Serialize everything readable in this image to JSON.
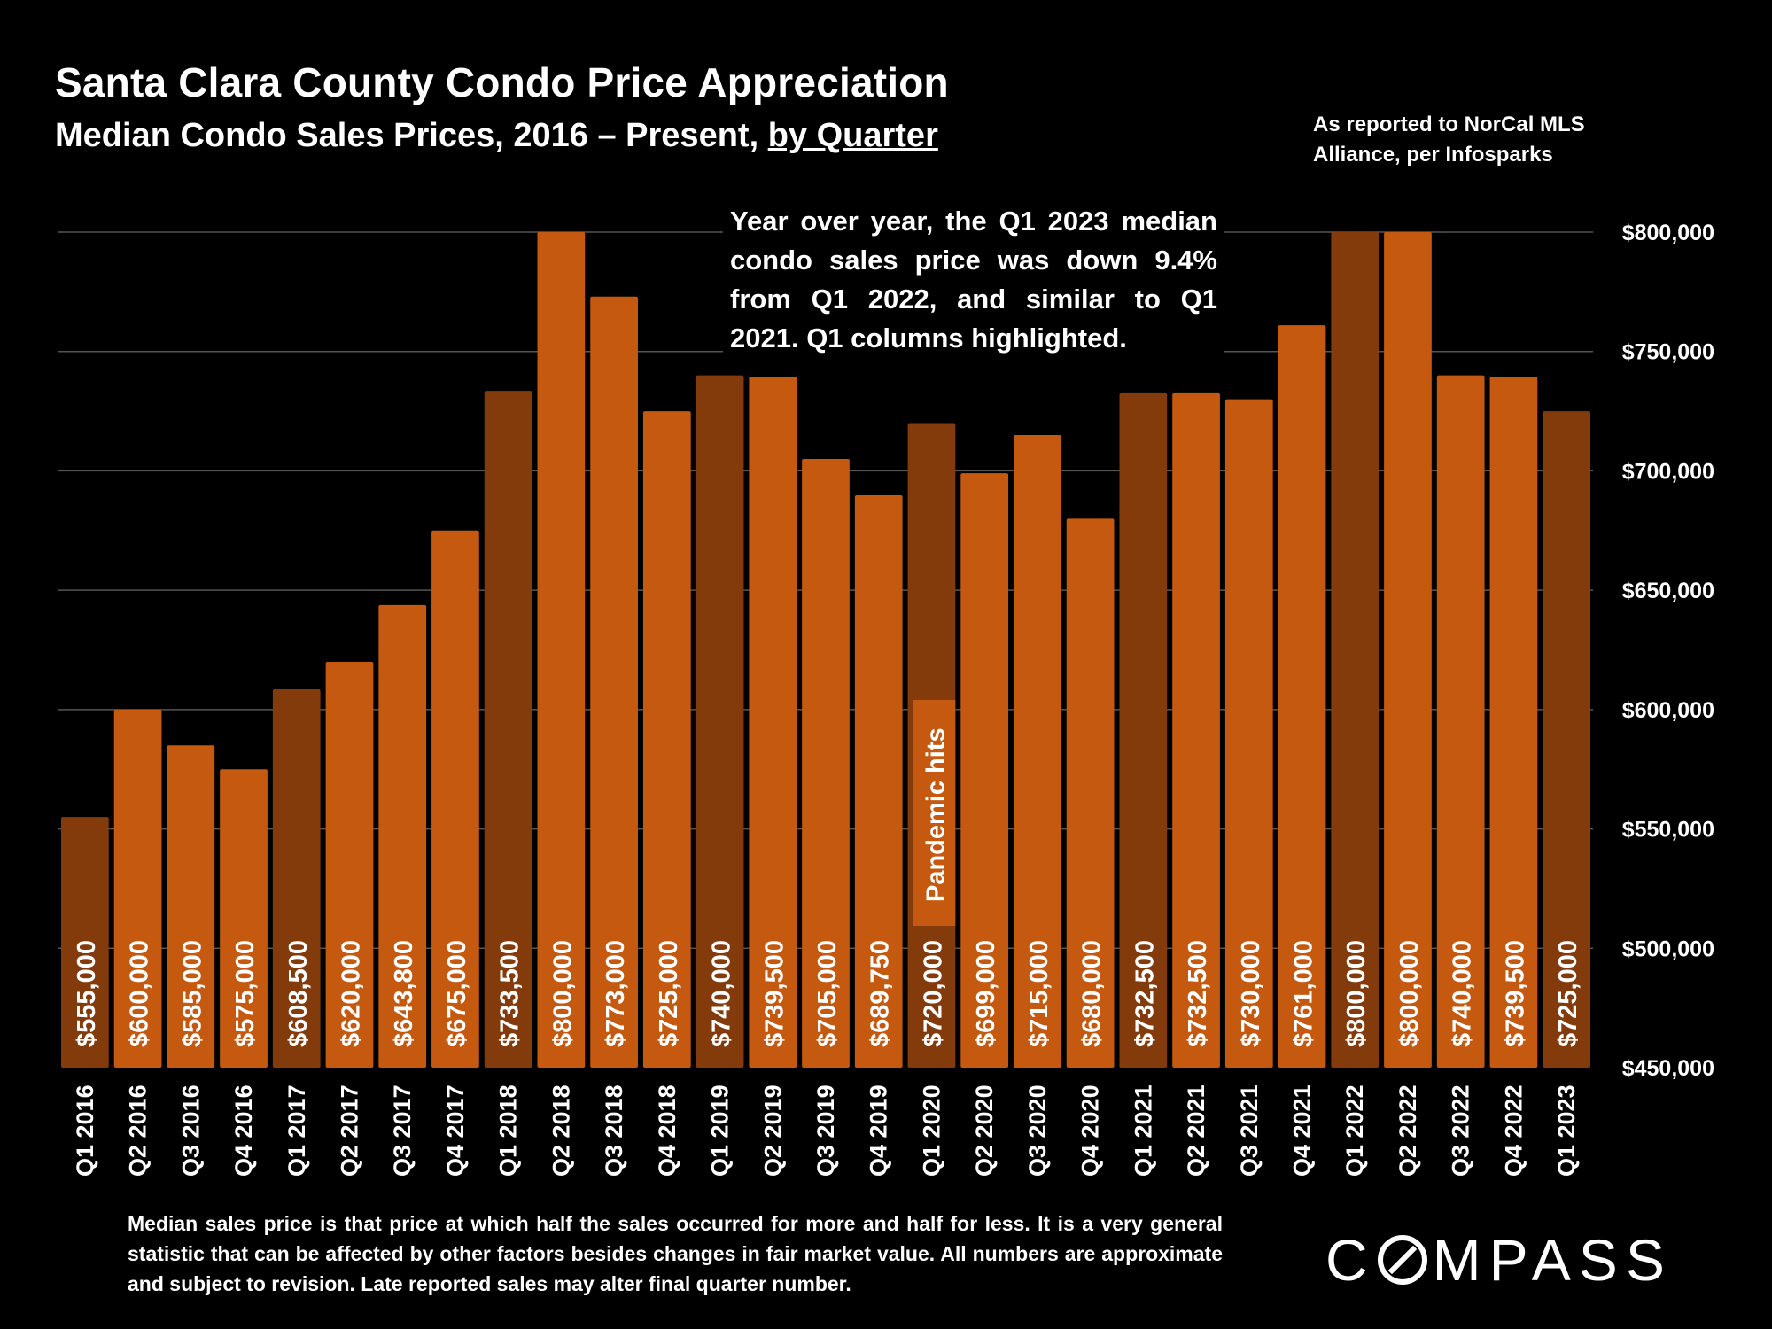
{
  "header": {
    "title": "Santa Clara County Condo Price Appreciation",
    "subtitle_main": "Median Condo Sales Prices, 2016 – Present, ",
    "subtitle_underlined": "by Quarter",
    "source_line1": "As reported to NorCal MLS",
    "source_line2": "Alliance, per Infosparks"
  },
  "annotation": "Year over year, the Q1 2023 median condo sales price was down 9.4% from Q1 2022, and similar to Q1 2021. Q1 columns highlighted.",
  "callout": "Pandemic hits",
  "footnote": "Median sales price is that price at which half the sales occurred for more and half for less. It is a very general statistic that can be affected by other factors besides changes in fair market value. All numbers are approximate and subject to revision. Late reported sales may alter final quarter number.",
  "logo": {
    "before": "C",
    "after": "MPASS"
  },
  "colors": {
    "bar": "#C4590F",
    "bar_q1": "#843B0C",
    "grid": "#555555",
    "background": "#000000",
    "text": "#FFFFFF"
  },
  "chart_data": {
    "type": "bar",
    "title": "Santa Clara County Condo Price Appreciation",
    "subtitle": "Median Condo Sales Prices, 2016 – Present, by Quarter",
    "categories": [
      "Q1 2016",
      "Q2 2016",
      "Q3 2016",
      "Q4 2016",
      "Q1 2017",
      "Q2 2017",
      "Q3 2017",
      "Q4 2017",
      "Q1 2018",
      "Q2 2018",
      "Q3 2018",
      "Q4 2018",
      "Q1 2019",
      "Q2 2019",
      "Q3 2019",
      "Q4 2019",
      "Q1 2020",
      "Q2 2020",
      "Q3 2020",
      "Q4 2020",
      "Q1 2021",
      "Q2 2021",
      "Q3 2021",
      "Q4 2021",
      "Q1 2022",
      "Q2 2022",
      "Q3 2022",
      "Q4 2022",
      "Q1 2023"
    ],
    "values": [
      555000,
      600000,
      585000,
      575000,
      608500,
      620000,
      643800,
      675000,
      733500,
      800000,
      773000,
      725000,
      740000,
      739500,
      705000,
      689750,
      720000,
      699000,
      715000,
      680000,
      732500,
      732500,
      730000,
      761000,
      800000,
      800000,
      740000,
      739500,
      725000
    ],
    "labels": [
      "$555,000",
      "$600,000",
      "$585,000",
      "$575,000",
      "$608,500",
      "$620,000",
      "$643,800",
      "$675,000",
      "$733,500",
      "$800,000",
      "$773,000",
      "$725,000",
      "$740,000",
      "$739,500",
      "$705,000",
      "$689,750",
      "$720,000",
      "$699,000",
      "$715,000",
      "$680,000",
      "$732,500",
      "$732,500",
      "$730,000",
      "$761,000",
      "$800,000",
      "$800,000",
      "$740,000",
      "$739,500",
      "$725,000"
    ],
    "highlighted": [
      true,
      false,
      false,
      false,
      true,
      false,
      false,
      false,
      true,
      false,
      false,
      false,
      true,
      false,
      false,
      false,
      true,
      false,
      false,
      false,
      true,
      false,
      false,
      false,
      true,
      false,
      false,
      false,
      true
    ],
    "ylim": [
      450000,
      800000
    ],
    "y_ticks": [
      450000,
      500000,
      550000,
      600000,
      650000,
      700000,
      750000,
      800000
    ],
    "y_tick_labels": [
      "$450,000",
      "$500,000",
      "$550,000",
      "$600,000",
      "$650,000",
      "$700,000",
      "$750,000",
      "$800,000"
    ],
    "y_axis_side": "right",
    "grid": true,
    "xlabel": "",
    "ylabel": ""
  }
}
